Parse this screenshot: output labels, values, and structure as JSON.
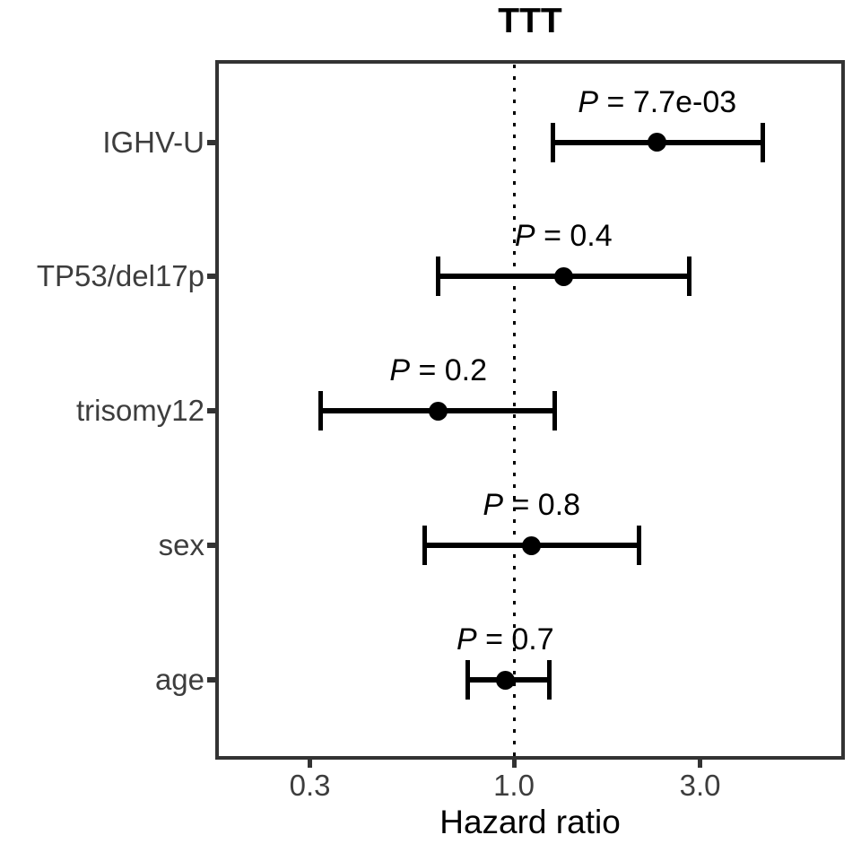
{
  "chart_data": {
    "type": "forest",
    "title": "TTT",
    "xlabel": "Hazard ratio",
    "x_scale": "log10",
    "xlim": [
      0.17,
      7.0
    ],
    "x_ticks": [
      0.3,
      1.0,
      3.0
    ],
    "x_tick_labels": [
      "0.3",
      "1.0",
      "3.0"
    ],
    "reference_line": 1.0,
    "grid": false,
    "legend": "none",
    "rows": [
      {
        "label": "IGHV-U",
        "hr": 2.33,
        "ci_low": 1.26,
        "ci_high": 4.35,
        "p_label": "P = 7.7e-03"
      },
      {
        "label": "TP53/del17p",
        "hr": 1.34,
        "ci_low": 0.64,
        "ci_high": 2.81,
        "p_label": "P = 0.4"
      },
      {
        "label": "trisomy12",
        "hr": 0.64,
        "ci_low": 0.32,
        "ci_high": 1.27,
        "p_label": "P = 0.2"
      },
      {
        "label": "sex",
        "hr": 1.11,
        "ci_low": 0.59,
        "ci_high": 2.09,
        "p_label": "P = 0.8"
      },
      {
        "label": "age",
        "hr": 0.95,
        "ci_low": 0.76,
        "ci_high": 1.23,
        "p_label": "P = 0.7"
      }
    ]
  }
}
